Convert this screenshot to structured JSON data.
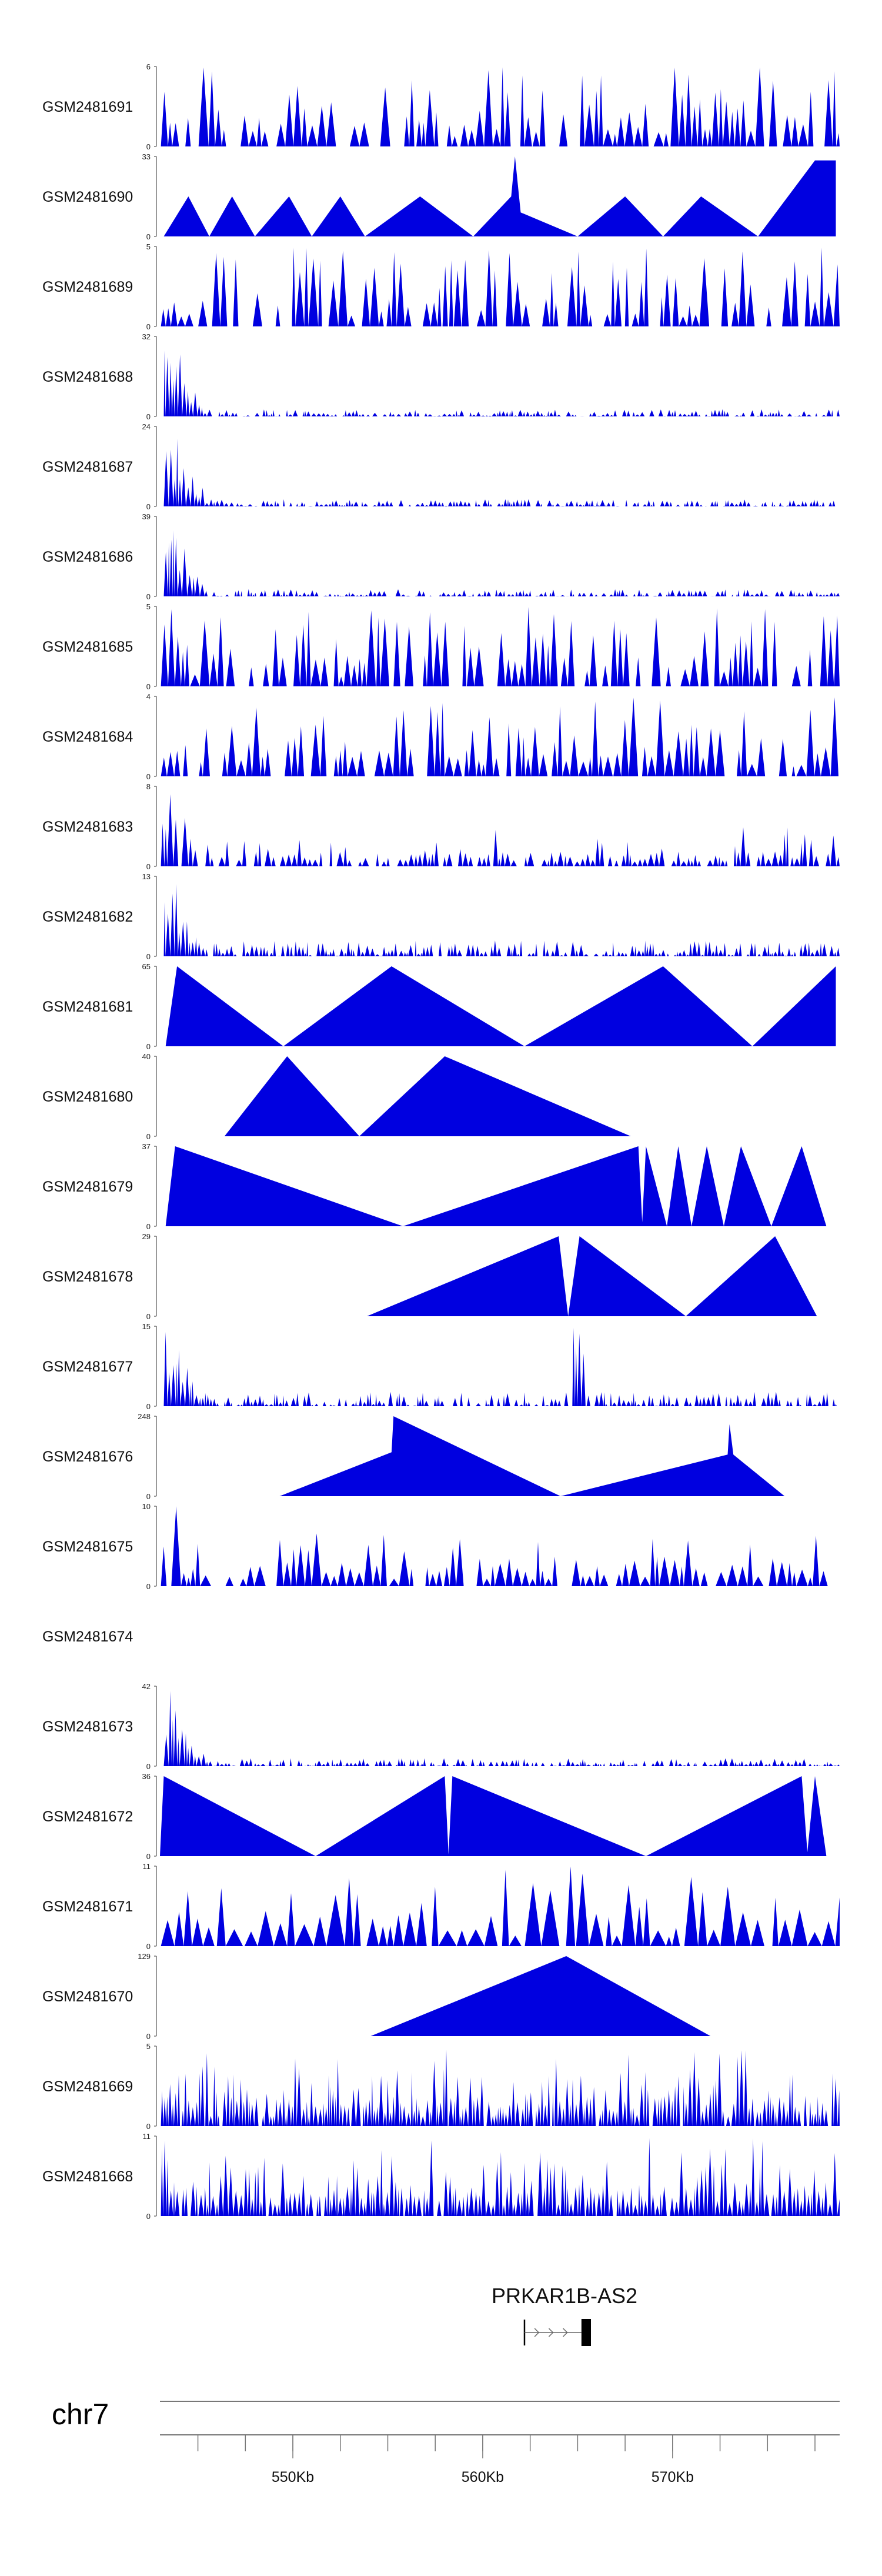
{
  "chart_data": {
    "type": "area",
    "colors": {
      "signal": "#0000e0",
      "axis": "#555555",
      "gene": "#000000"
    },
    "x_range_kb": [
      543.0,
      578.8
    ],
    "tracks": [
      {
        "name": "GSM2481691",
        "ymax": "6",
        "ymin": "0",
        "style": "spiky",
        "seed": 1
      },
      {
        "name": "GSM2481690",
        "ymax": "33",
        "ymin": "0",
        "style": "peaks",
        "points": [
          [
            543.2,
            0
          ],
          [
            544.5,
            0.5
          ],
          [
            545.6,
            0
          ],
          [
            546.8,
            0.5
          ],
          [
            548.0,
            0
          ],
          [
            549.8,
            0.5
          ],
          [
            551.0,
            0
          ],
          [
            552.5,
            0.5
          ],
          [
            553.8,
            0
          ],
          [
            556.7,
            0.5
          ],
          [
            559.5,
            0
          ],
          [
            561.5,
            0.5
          ],
          [
            561.7,
            1.0
          ],
          [
            562.0,
            0.3
          ],
          [
            565.0,
            0
          ],
          [
            567.5,
            0.5
          ],
          [
            569.5,
            0
          ],
          [
            571.5,
            0.5
          ],
          [
            574.5,
            0
          ],
          [
            577.5,
            0.95
          ],
          [
            578.6,
            0.95
          ]
        ]
      },
      {
        "name": "GSM2481689",
        "ymax": "5",
        "ymin": "0",
        "style": "spiky",
        "seed": 3
      },
      {
        "name": "GSM2481688",
        "ymax": "32",
        "ymin": "0",
        "style": "decay",
        "seed": 4
      },
      {
        "name": "GSM2481687",
        "ymax": "24",
        "ymin": "0",
        "style": "decay",
        "seed": 5
      },
      {
        "name": "GSM2481686",
        "ymax": "39",
        "ymin": "0",
        "style": "decay",
        "seed": 6
      },
      {
        "name": "GSM2481685",
        "ymax": "5",
        "ymin": "0",
        "style": "spiky",
        "seed": 7
      },
      {
        "name": "GSM2481684",
        "ymax": "4",
        "ymin": "0",
        "style": "spiky",
        "seed": 8
      },
      {
        "name": "GSM2481683",
        "ymax": "8",
        "ymin": "0",
        "style": "spiky2",
        "seed": 9
      },
      {
        "name": "GSM2481682",
        "ymax": "13",
        "ymin": "0",
        "style": "decay2",
        "seed": 10
      },
      {
        "name": "GSM2481681",
        "ymax": "65",
        "ymin": "0",
        "style": "peaks",
        "points": [
          [
            543.3,
            0
          ],
          [
            543.9,
            1.0
          ],
          [
            549.5,
            0
          ],
          [
            555.2,
            1.0
          ],
          [
            562.2,
            0
          ],
          [
            569.5,
            1.0
          ],
          [
            574.2,
            0
          ],
          [
            578.6,
            1.0
          ],
          [
            578.6,
            0
          ]
        ]
      },
      {
        "name": "GSM2481680",
        "ymax": "40",
        "ymin": "0",
        "style": "peaks",
        "points": [
          [
            546.4,
            0
          ],
          [
            549.7,
            1.0
          ],
          [
            553.5,
            0
          ],
          [
            558.0,
            1.0
          ],
          [
            567.8,
            0
          ]
        ]
      },
      {
        "name": "GSM2481679",
        "ymax": "37",
        "ymin": "0",
        "style": "peaks",
        "points": [
          [
            543.3,
            0
          ],
          [
            543.8,
            1.0
          ],
          [
            555.8,
            0
          ],
          [
            568.2,
            1.0
          ],
          [
            568.4,
            0.05
          ],
          [
            568.6,
            1.0
          ],
          [
            569.7,
            0
          ],
          [
            570.3,
            1.0
          ],
          [
            571.0,
            0
          ],
          [
            571.8,
            1.0
          ],
          [
            572.7,
            0
          ],
          [
            573.6,
            1.0
          ],
          [
            575.2,
            0
          ],
          [
            576.8,
            1.0
          ],
          [
            578.1,
            0
          ]
        ]
      },
      {
        "name": "GSM2481678",
        "ymax": "29",
        "ymin": "0",
        "style": "peaks",
        "points": [
          [
            553.9,
            0
          ],
          [
            564.0,
            1.0
          ],
          [
            564.5,
            0
          ],
          [
            565.1,
            1.0
          ],
          [
            570.7,
            0
          ],
          [
            575.4,
            1.0
          ],
          [
            577.6,
            0
          ]
        ]
      },
      {
        "name": "GSM2481677",
        "ymax": "15",
        "ymin": "0",
        "style": "spike677",
        "seed": 13
      },
      {
        "name": "GSM2481676",
        "ymax": "248",
        "ymin": "0",
        "style": "peaks",
        "points": [
          [
            549.3,
            0
          ],
          [
            555.2,
            0.55
          ],
          [
            555.3,
            1.0
          ],
          [
            564.1,
            0
          ],
          [
            572.9,
            0.52
          ],
          [
            573.0,
            0.9
          ],
          [
            573.2,
            0.52
          ],
          [
            575.9,
            0
          ]
        ]
      },
      {
        "name": "GSM2481675",
        "ymax": "10",
        "ymin": "0",
        "style": "spiky675",
        "seed": 15
      },
      {
        "name": "GSM2481674",
        "ymax": "",
        "ymin": "",
        "style": "empty"
      },
      {
        "name": "GSM2481673",
        "ymax": "42",
        "ymin": "0",
        "style": "decay3",
        "seed": 17
      },
      {
        "name": "GSM2481672",
        "ymax": "36",
        "ymin": "0",
        "style": "peaks",
        "points": [
          [
            543.0,
            0
          ],
          [
            543.2,
            1.0
          ],
          [
            551.2,
            0
          ],
          [
            558.0,
            1.0
          ],
          [
            558.2,
            0.02
          ],
          [
            558.4,
            1.0
          ],
          [
            568.6,
            0
          ],
          [
            576.8,
            1.0
          ],
          [
            577.1,
            0.05
          ],
          [
            577.5,
            1.0
          ],
          [
            578.1,
            0
          ]
        ]
      },
      {
        "name": "GSM2481671",
        "ymax": "11",
        "ymin": "0",
        "style": "spiky671",
        "seed": 19
      },
      {
        "name": "GSM2481670",
        "ymax": "129",
        "ymin": "0",
        "style": "peaks",
        "points": [
          [
            554.1,
            0
          ],
          [
            564.4,
            1.0
          ],
          [
            572.0,
            0
          ]
        ]
      },
      {
        "name": "GSM2481669",
        "ymax": "5",
        "ymin": "0",
        "style": "dense",
        "seed": 21
      },
      {
        "name": "GSM2481668",
        "ymax": "11",
        "ymin": "0",
        "style": "dense2",
        "seed": 22
      }
    ],
    "gene": {
      "name": "PRKAR1B-AS2",
      "start_kb": 562.2,
      "end_kb": 565.7,
      "exon_start_kb": 565.2,
      "strand": "+"
    },
    "chromosome": "chr7",
    "ruler": {
      "major_ticks_kb": [
        550,
        560,
        570
      ],
      "major_labels": [
        "550Kb",
        "560Kb",
        "570Kb"
      ],
      "minor_step_kb": 2.5
    }
  }
}
